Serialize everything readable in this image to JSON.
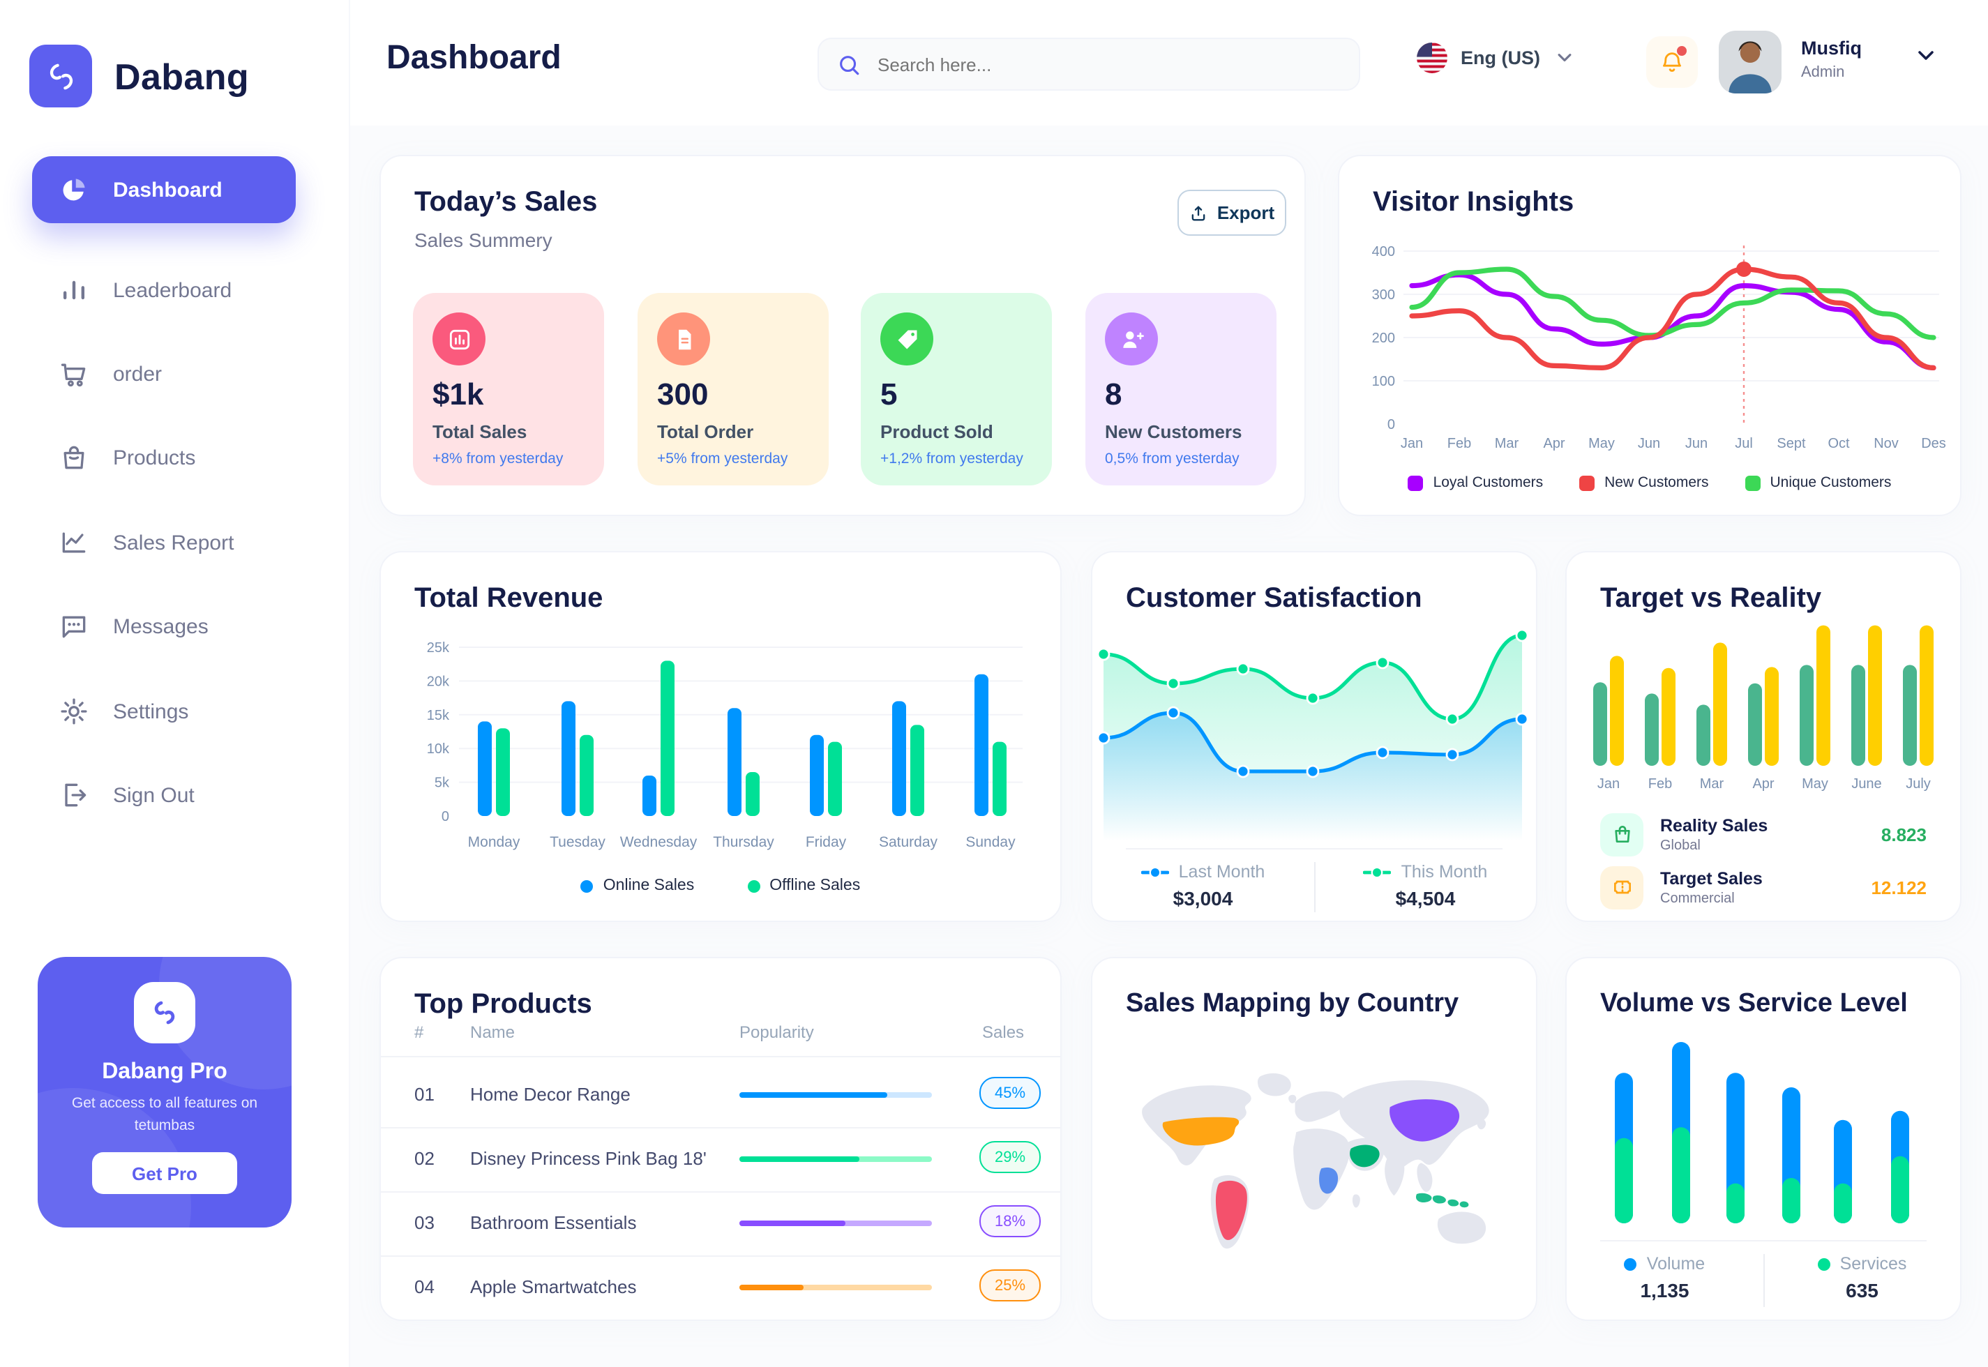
{
  "colors": {
    "accent": "#5D5FEF",
    "navy": "#151D48",
    "text_muted": "#737791",
    "text_light": "#96A5B8",
    "axis_label": "#7B91B0",
    "delta_blue": "#4079ED",
    "online_blue": "#0095FF",
    "offline_green": "#00E096",
    "loyal_purple": "#A700FF",
    "new_red": "#EF4444",
    "unique_green": "#3CD856",
    "reality_green": "#4AB58E",
    "target_yellow": "#FFCF00",
    "reality_value_green": "#27AE60",
    "target_value_orange": "#FFA412",
    "bell_orange": "#FFA412",
    "notification_red": "#EB5757"
  },
  "brand": {
    "name": "Dabang"
  },
  "sidebar": {
    "items": [
      {
        "label": "Dashboard",
        "icon": "pie-chart-icon",
        "active": true
      },
      {
        "label": "Leaderboard",
        "icon": "bar-chart-icon",
        "active": false
      },
      {
        "label": "order",
        "icon": "cart-icon",
        "active": false
      },
      {
        "label": "Products",
        "icon": "bag-icon",
        "active": false
      },
      {
        "label": "Sales Report",
        "icon": "line-chart-icon",
        "active": false
      },
      {
        "label": "Messages",
        "icon": "message-icon",
        "active": false
      },
      {
        "label": "Settings",
        "icon": "gear-icon",
        "active": false
      },
      {
        "label": "Sign Out",
        "icon": "sign-out-icon",
        "active": false
      }
    ],
    "pro_card": {
      "title": "Dabang Pro",
      "description": "Get access to all features on tetumbas",
      "button": "Get Pro"
    }
  },
  "header": {
    "title": "Dashboard",
    "search_placeholder": "Search here...",
    "language": "Eng (US)",
    "has_notification": true,
    "user": {
      "name": "Musfiq",
      "role": "Admin"
    }
  },
  "panels": {
    "today_sales": {
      "title": "Today’s Sales",
      "subtitle": "Sales Summery",
      "export_label": "Export",
      "cards": [
        {
          "value": "$1k",
          "label": "Total Sales",
          "delta": "+8% from yesterday",
          "bg": "#FFE2E5",
          "icon_bg": "#FA5A7D",
          "icon": "chart-column-icon"
        },
        {
          "value": "300",
          "label": "Total Order",
          "delta": "+5% from yesterday",
          "bg": "#FFF4DE",
          "icon_bg": "#FF947A",
          "icon": "order-file-icon"
        },
        {
          "value": "5",
          "label": "Product Sold",
          "delta": "+1,2% from yesterday",
          "bg": "#DCFCE7",
          "icon_bg": "#3CD856",
          "icon": "tag-icon"
        },
        {
          "value": "8",
          "label": "New Customers",
          "delta": "0,5% from yesterday",
          "bg": "#F3E8FF",
          "icon_bg": "#BF83FF",
          "icon": "user-plus-icon"
        }
      ]
    },
    "visitor_insights": {
      "title": "Visitor Insights"
    },
    "total_revenue": {
      "title": "Total Revenue"
    },
    "customer_satisfaction": {
      "title": "Customer Satisfaction"
    },
    "target_vs_reality": {
      "title": "Target vs Reality",
      "rows": [
        {
          "label": "Reality Sales",
          "sub": "Global",
          "value": "8.823",
          "value_color": "#27AE60",
          "icon_bg": "#E2FFF3",
          "icon": "shopping-bag-icon"
        },
        {
          "label": "Target Sales",
          "sub": "Commercial",
          "value": "12.122",
          "value_color": "#FFA412",
          "icon_bg": "#FFF4DE",
          "icon": "ticket-icon"
        }
      ]
    },
    "top_products": {
      "title": "Top Products",
      "headers": {
        "num": "#",
        "name": "Name",
        "popularity": "Popularity",
        "sales": "Sales"
      },
      "rows": [
        {
          "num": "01",
          "name": "Home Decor Range",
          "popularity": 77,
          "sales": "45%",
          "color": "#0095FF",
          "track": "#CDE7FF",
          "badge_bg": "#F0F9FF"
        },
        {
          "num": "02",
          "name": "Disney Princess Pink Bag 18'",
          "popularity": 62,
          "sales": "29%",
          "color": "#00C a096",
          "track": "#8CFAC7",
          "badge_bg": "#F0FDF4"
        },
        {
          "num": "03",
          "name": "Bathroom Essentials",
          "popularity": 55,
          "sales": "18%",
          "color": "#884DFF",
          "track": "#C5A8FF",
          "badge_bg": "#F8F4FF"
        },
        {
          "num": "04",
          "name": "Apple Smartwatches",
          "popularity": 33,
          "sales": "25%",
          "color": "#FF8F0D",
          "track": "#FFD9A3",
          "badge_bg": "#FFF6EB"
        }
      ]
    },
    "sales_map": {
      "title": "Sales Mapping by Country",
      "countries": [
        {
          "name": "United States",
          "color": "#FFA412"
        },
        {
          "name": "Brazil",
          "color": "#F4516C"
        },
        {
          "name": "DR Congo",
          "color": "#5A8DEE"
        },
        {
          "name": "Saudi Arabia",
          "color": "#00B074"
        },
        {
          "name": "China",
          "color": "#8950FC"
        },
        {
          "name": "Indonesia",
          "color": "#1FBE8E"
        }
      ]
    },
    "volume_service": {
      "title": "Volume vs Service Level"
    }
  },
  "chart_data": [
    {
      "id": "visitor_insights",
      "type": "line",
      "title": "Visitor Insights",
      "x_labels": [
        "Jan",
        "Feb",
        "Mar",
        "Apr",
        "May",
        "Jun",
        "Jun",
        "Jul",
        "Sept",
        "Oct",
        "Nov",
        "Des"
      ],
      "ylim": [
        0,
        400
      ],
      "y_ticks": [
        0,
        100,
        200,
        300,
        400
      ],
      "grid": true,
      "legend_position": "bottom",
      "series": [
        {
          "name": "Loyal Customers",
          "color": "#A700FF",
          "values": [
            320,
            345,
            300,
            220,
            185,
            200,
            250,
            320,
            305,
            265,
            190,
            130
          ]
        },
        {
          "name": "New Customers",
          "color": "#EF4444",
          "values": [
            250,
            262,
            200,
            135,
            130,
            200,
            300,
            358,
            340,
            280,
            200,
            130
          ]
        },
        {
          "name": "Unique Customers",
          "color": "#3CD856",
          "values": [
            270,
            350,
            358,
            295,
            240,
            205,
            230,
            280,
            310,
            308,
            255,
            200
          ]
        }
      ],
      "marker": {
        "series": "New Customers",
        "index": 7,
        "value": 358,
        "has_dashed_vline": true
      }
    },
    {
      "id": "total_revenue",
      "type": "bar",
      "title": "Total Revenue",
      "categories": [
        "Monday",
        "Tuesday",
        "Wednesday",
        "Thursday",
        "Friday",
        "Saturday",
        "Sunday"
      ],
      "ylim_k": [
        0,
        25
      ],
      "y_tick_labels": [
        "0",
        "5k",
        "10k",
        "15k",
        "20k",
        "25k"
      ],
      "grid": true,
      "legend_position": "bottom",
      "series": [
        {
          "name": "Online Sales",
          "color": "#0095FF",
          "values_k": [
            14,
            17,
            6,
            16,
            12,
            17,
            21
          ]
        },
        {
          "name": "Offline Sales",
          "color": "#00E096",
          "values_k": [
            13,
            12,
            23,
            6.5,
            11,
            13.5,
            11
          ]
        }
      ]
    },
    {
      "id": "customer_satisfaction",
      "type": "area",
      "title": "Customer Satisfaction",
      "note": "no axes shown; values are relative 0-100",
      "series": [
        {
          "name": "Last Month",
          "color": "#0095FF",
          "total": "$3,004",
          "values": [
            46,
            58,
            30,
            30,
            39,
            38,
            55
          ]
        },
        {
          "name": "This Month",
          "color": "#00E096",
          "total": "$4,504",
          "values": [
            86,
            72,
            79,
            65,
            82,
            55,
            95
          ]
        }
      ]
    },
    {
      "id": "target_vs_reality",
      "type": "bar",
      "title": "Target vs Reality",
      "categories": [
        "Jan",
        "Feb",
        "Mar",
        "Apr",
        "May",
        "June",
        "July"
      ],
      "series": [
        {
          "name": "Reality Sales",
          "color": "#4AB58E",
          "values": [
            8.2,
            7.1,
            6.0,
            8.1,
            9.9,
            9.9,
            9.9
          ]
        },
        {
          "name": "Target Sales",
          "color": "#FFCF00",
          "values": [
            10.8,
            9.6,
            12.1,
            9.7,
            13.8,
            13.8,
            13.8
          ]
        }
      ]
    },
    {
      "id": "volume_service_level",
      "type": "stacked-bar",
      "title": "Volume vs Service Level",
      "series": [
        {
          "name": "Volume",
          "color": "#0095FF",
          "total": "1,135",
          "values": [
            36,
            47,
            61,
            50,
            35,
            25
          ]
        },
        {
          "name": "Services",
          "color": "#00E096",
          "total": "635",
          "values": [
            47,
            53,
            22,
            25,
            22,
            37
          ]
        }
      ]
    },
    {
      "id": "top_products_table",
      "type": "table",
      "headers": [
        "#",
        "Name",
        "Popularity",
        "Sales"
      ],
      "rows": [
        [
          "01",
          "Home Decor Range",
          "77%",
          "45%"
        ],
        [
          "02",
          "Disney Princess Pink Bag 18'",
          "62%",
          "29%"
        ],
        [
          "03",
          "Bathroom Essentials",
          "55%",
          "18%"
        ],
        [
          "04",
          "Apple Smartwatches",
          "33%",
          "25%"
        ]
      ]
    }
  ]
}
